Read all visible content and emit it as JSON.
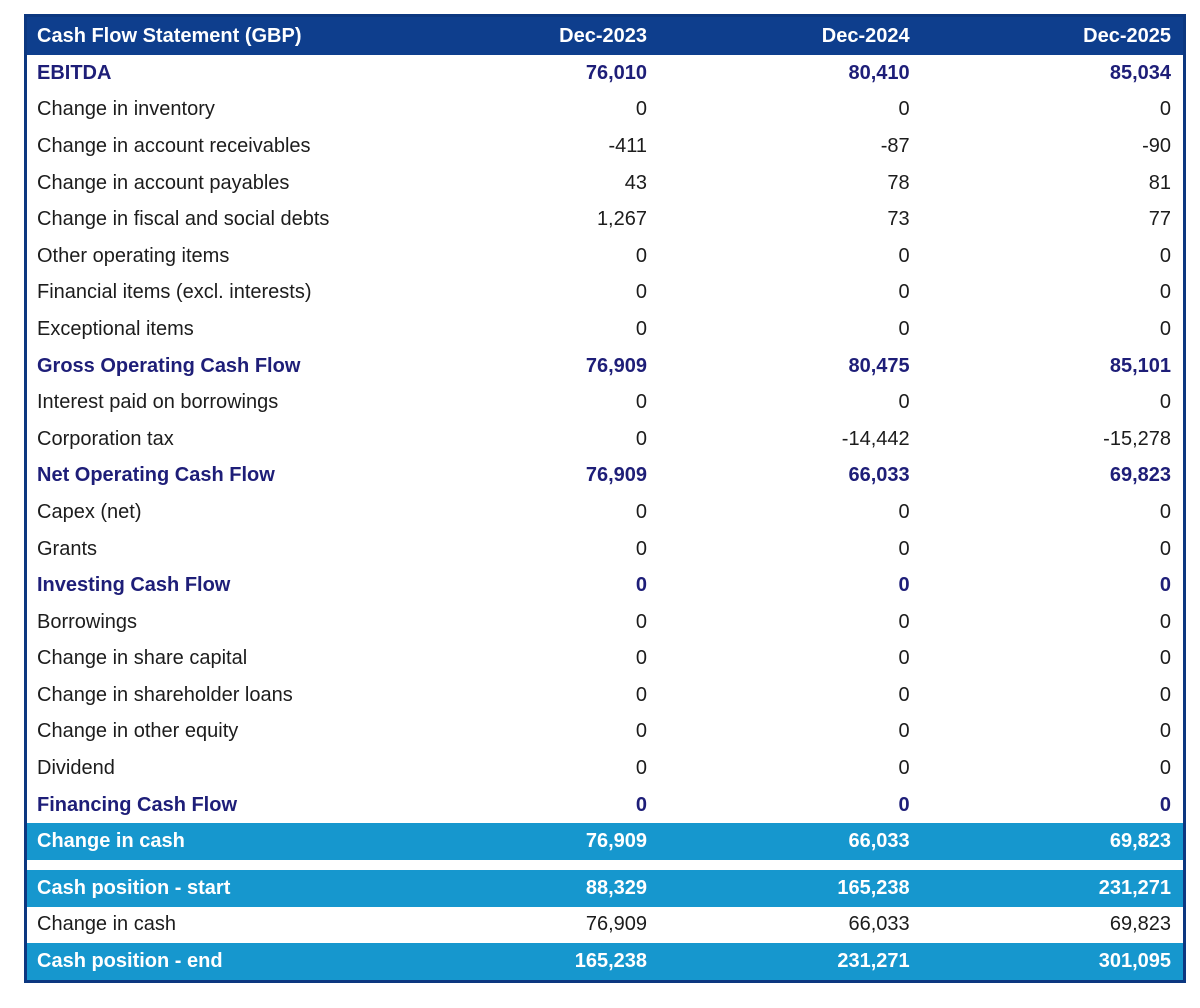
{
  "table": {
    "title": "Cash Flow Statement (GBP)",
    "columns": [
      "Dec-2023",
      "Dec-2024",
      "Dec-2025"
    ],
    "rows": [
      {
        "label": "EBITDA",
        "values": [
          "76,010",
          "80,410",
          "85,034"
        ],
        "style": "bold"
      },
      {
        "label": "Change in inventory",
        "values": [
          "0",
          "0",
          "0"
        ],
        "style": "normal"
      },
      {
        "label": "Change in account receivables",
        "values": [
          "-411",
          "-87",
          "-90"
        ],
        "style": "normal"
      },
      {
        "label": "Change in account payables",
        "values": [
          "43",
          "78",
          "81"
        ],
        "style": "normal"
      },
      {
        "label": "Change in fiscal and social debts",
        "values": [
          "1,267",
          "73",
          "77"
        ],
        "style": "normal"
      },
      {
        "label": "Other operating items",
        "values": [
          "0",
          "0",
          "0"
        ],
        "style": "normal"
      },
      {
        "label": "Financial items (excl. interests)",
        "values": [
          "0",
          "0",
          "0"
        ],
        "style": "normal"
      },
      {
        "label": "Exceptional items",
        "values": [
          "0",
          "0",
          "0"
        ],
        "style": "normal"
      },
      {
        "label": "Gross Operating Cash Flow",
        "values": [
          "76,909",
          "80,475",
          "85,101"
        ],
        "style": "bold"
      },
      {
        "label": "Interest paid on borrowings",
        "values": [
          "0",
          "0",
          "0"
        ],
        "style": "normal"
      },
      {
        "label": "Corporation tax",
        "values": [
          "0",
          "-14,442",
          "-15,278"
        ],
        "style": "normal"
      },
      {
        "label": "Net Operating Cash Flow",
        "values": [
          "76,909",
          "66,033",
          "69,823"
        ],
        "style": "bold"
      },
      {
        "label": "Capex (net)",
        "values": [
          "0",
          "0",
          "0"
        ],
        "style": "normal"
      },
      {
        "label": "Grants",
        "values": [
          "0",
          "0",
          "0"
        ],
        "style": "normal"
      },
      {
        "label": "Investing Cash Flow",
        "values": [
          "0",
          "0",
          "0"
        ],
        "style": "bold"
      },
      {
        "label": "Borrowings",
        "values": [
          "0",
          "0",
          "0"
        ],
        "style": "normal"
      },
      {
        "label": "Change in share capital",
        "values": [
          "0",
          "0",
          "0"
        ],
        "style": "normal"
      },
      {
        "label": "Change in shareholder loans",
        "values": [
          "0",
          "0",
          "0"
        ],
        "style": "normal"
      },
      {
        "label": "Change in other equity",
        "values": [
          "0",
          "0",
          "0"
        ],
        "style": "normal"
      },
      {
        "label": "Dividend",
        "values": [
          "0",
          "0",
          "0"
        ],
        "style": "normal"
      },
      {
        "label": "Financing Cash Flow",
        "values": [
          "0",
          "0",
          "0"
        ],
        "style": "bold"
      },
      {
        "label": "Change in cash",
        "values": [
          "76,909",
          "66,033",
          "69,823"
        ],
        "style": "highlight"
      },
      {
        "style": "spacer"
      },
      {
        "label": "Cash position - start",
        "values": [
          "88,329",
          "165,238",
          "231,271"
        ],
        "style": "highlight"
      },
      {
        "label": "Change in cash",
        "values": [
          "76,909",
          "66,033",
          "69,823"
        ],
        "style": "normal"
      },
      {
        "label": "Cash position - end",
        "values": [
          "165,238",
          "231,271",
          "301,095"
        ],
        "style": "highlight"
      }
    ],
    "colors": {
      "header_bg": "#0e3e8d",
      "border": "#0c3780",
      "highlight_bg": "#1697ce",
      "bold_text": "#1e1e78",
      "body_text": "#1c1c1c",
      "header_text": "#ffffff"
    }
  }
}
